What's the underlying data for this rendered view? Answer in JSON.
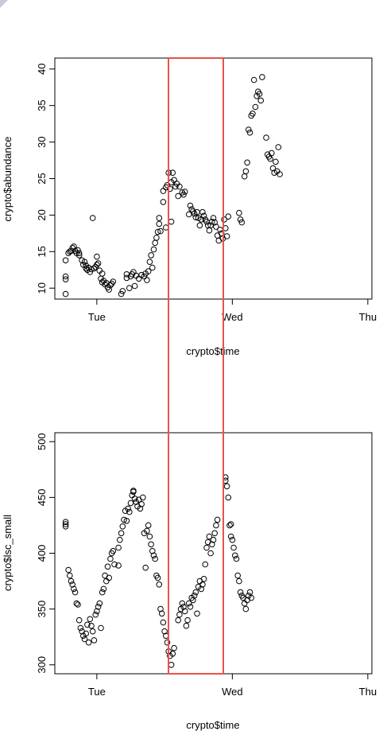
{
  "highlight_color": "#e8534a",
  "chart_data": [
    {
      "type": "scatter",
      "title": "",
      "xlabel": "crypto$time",
      "ylabel": "crypto$abundance",
      "x_tick_labels": [
        "Tue",
        "Wed",
        "Thu"
      ],
      "x_tick_values": [
        1,
        2,
        3
      ],
      "y_ticks": [
        10,
        15,
        20,
        25,
        30,
        35,
        40
      ],
      "xlim": [
        0.69,
        3.03
      ],
      "ylim": [
        8.5,
        41.5
      ],
      "grid": false,
      "points": [
        [
          0.77,
          9.2
        ],
        [
          0.77,
          11.2
        ],
        [
          0.77,
          11.6
        ],
        [
          0.77,
          13.8
        ],
        [
          0.79,
          14.8
        ],
        [
          0.8,
          15.0
        ],
        [
          0.81,
          15.1
        ],
        [
          0.82,
          15.5
        ],
        [
          0.83,
          15.7
        ],
        [
          0.84,
          15.1
        ],
        [
          0.85,
          14.8
        ],
        [
          0.86,
          15.2
        ],
        [
          0.87,
          14.5
        ],
        [
          0.87,
          14.8
        ],
        [
          0.89,
          13.8
        ],
        [
          0.9,
          13.2
        ],
        [
          0.91,
          13.6
        ],
        [
          0.92,
          12.7
        ],
        [
          0.92,
          13.1
        ],
        [
          0.93,
          12.5
        ],
        [
          0.94,
          12.8
        ],
        [
          0.95,
          12.2
        ],
        [
          0.96,
          12.6
        ],
        [
          0.97,
          19.6
        ],
        [
          0.98,
          12.7
        ],
        [
          0.99,
          12.9
        ],
        [
          1.0,
          13.2
        ],
        [
          1.0,
          14.3
        ],
        [
          1.01,
          13.4
        ],
        [
          1.02,
          12.4
        ],
        [
          1.03,
          11.3
        ],
        [
          1.04,
          10.8
        ],
        [
          1.04,
          12.0
        ],
        [
          1.05,
          11.0
        ],
        [
          1.06,
          10.5
        ],
        [
          1.07,
          10.7
        ],
        [
          1.08,
          10.1
        ],
        [
          1.09,
          9.8
        ],
        [
          1.1,
          10.4
        ],
        [
          1.11,
          10.6
        ],
        [
          1.12,
          10.9
        ],
        [
          1.18,
          9.2
        ],
        [
          1.19,
          9.6
        ],
        [
          1.22,
          11.4
        ],
        [
          1.22,
          11.9
        ],
        [
          1.24,
          10.0
        ],
        [
          1.25,
          11.6
        ],
        [
          1.26,
          11.9
        ],
        [
          1.27,
          12.2
        ],
        [
          1.28,
          10.3
        ],
        [
          1.29,
          11.7
        ],
        [
          1.31,
          11.3
        ],
        [
          1.33,
          11.8
        ],
        [
          1.35,
          11.6
        ],
        [
          1.36,
          12.0
        ],
        [
          1.37,
          11.1
        ],
        [
          1.38,
          12.3
        ],
        [
          1.39,
          13.6
        ],
        [
          1.4,
          14.5
        ],
        [
          1.41,
          12.8
        ],
        [
          1.42,
          15.3
        ],
        [
          1.43,
          16.2
        ],
        [
          1.44,
          16.9
        ],
        [
          1.45,
          17.7
        ],
        [
          1.46,
          18.8
        ],
        [
          1.46,
          19.6
        ],
        [
          1.47,
          17.8
        ],
        [
          1.49,
          21.8
        ],
        [
          1.49,
          23.3
        ],
        [
          1.51,
          23.8
        ],
        [
          1.51,
          18.3
        ],
        [
          1.52,
          24.1
        ],
        [
          1.53,
          25.8
        ],
        [
          1.54,
          23.6
        ],
        [
          1.55,
          24.5
        ],
        [
          1.56,
          25.8
        ],
        [
          1.57,
          24.8
        ],
        [
          1.58,
          23.9
        ],
        [
          1.59,
          24.3
        ],
        [
          1.6,
          22.6
        ],
        [
          1.61,
          23.9
        ],
        [
          1.63,
          23.1
        ],
        [
          1.64,
          22.8
        ],
        [
          1.65,
          23.2
        ],
        [
          1.55,
          19.1
        ],
        [
          1.68,
          20.1
        ],
        [
          1.69,
          21.3
        ],
        [
          1.7,
          20.8
        ],
        [
          1.71,
          20.5
        ],
        [
          1.72,
          20.2
        ],
        [
          1.73,
          19.7
        ],
        [
          1.74,
          20.4
        ],
        [
          1.75,
          19.6
        ],
        [
          1.76,
          18.6
        ],
        [
          1.77,
          19.4
        ],
        [
          1.78,
          20.4
        ],
        [
          1.79,
          19.9
        ],
        [
          1.8,
          19.4
        ],
        [
          1.81,
          19.1
        ],
        [
          1.82,
          18.6
        ],
        [
          1.83,
          17.9
        ],
        [
          1.84,
          18.6
        ],
        [
          1.85,
          19.1
        ],
        [
          1.86,
          19.6
        ],
        [
          1.87,
          19.0
        ],
        [
          1.88,
          18.4
        ],
        [
          1.89,
          17.2
        ],
        [
          1.9,
          16.5
        ],
        [
          1.91,
          18.0
        ],
        [
          1.92,
          17.5
        ],
        [
          1.93,
          16.8
        ],
        [
          1.94,
          19.4
        ],
        [
          1.95,
          18.2
        ],
        [
          1.96,
          17.1
        ],
        [
          1.97,
          19.8
        ],
        [
          2.05,
          20.3
        ],
        [
          2.06,
          19.4
        ],
        [
          2.07,
          19.0
        ],
        [
          2.09,
          25.3
        ],
        [
          2.1,
          26.0
        ],
        [
          2.11,
          27.2
        ],
        [
          2.12,
          31.7
        ],
        [
          2.13,
          31.3
        ],
        [
          2.14,
          33.6
        ],
        [
          2.15,
          33.9
        ],
        [
          2.16,
          38.5
        ],
        [
          2.17,
          34.8
        ],
        [
          2.18,
          36.3
        ],
        [
          2.19,
          36.9
        ],
        [
          2.2,
          36.6
        ],
        [
          2.21,
          35.7
        ],
        [
          2.22,
          38.9
        ],
        [
          2.25,
          30.6
        ],
        [
          2.26,
          28.3
        ],
        [
          2.27,
          28.0
        ],
        [
          2.28,
          27.7
        ],
        [
          2.29,
          28.5
        ],
        [
          2.3,
          26.4
        ],
        [
          2.31,
          25.8
        ],
        [
          2.32,
          27.3
        ],
        [
          2.33,
          26.0
        ],
        [
          2.34,
          29.3
        ],
        [
          2.35,
          25.6
        ]
      ]
    },
    {
      "type": "scatter",
      "title": "",
      "xlabel": "crypto$time",
      "ylabel": "crypto$lsc_small",
      "x_tick_labels": [
        "Tue",
        "Wed",
        "Thu"
      ],
      "x_tick_values": [
        1,
        2,
        3
      ],
      "y_ticks": [
        300,
        350,
        400,
        450,
        500
      ],
      "xlim": [
        0.69,
        3.03
      ],
      "ylim": [
        292,
        508
      ],
      "grid": false,
      "points": [
        [
          0.77,
          426
        ],
        [
          0.77,
          424
        ],
        [
          0.77,
          428
        ],
        [
          0.79,
          385
        ],
        [
          0.8,
          380
        ],
        [
          0.81,
          375
        ],
        [
          0.82,
          372
        ],
        [
          0.83,
          368
        ],
        [
          0.84,
          365
        ],
        [
          0.85,
          355
        ],
        [
          0.86,
          354
        ],
        [
          0.87,
          340
        ],
        [
          0.88,
          333
        ],
        [
          0.89,
          330
        ],
        [
          0.9,
          326
        ],
        [
          0.91,
          323
        ],
        [
          0.92,
          328
        ],
        [
          0.93,
          336
        ],
        [
          0.94,
          320
        ],
        [
          0.95,
          341
        ],
        [
          0.96,
          335
        ],
        [
          0.97,
          330
        ],
        [
          0.98,
          322
        ],
        [
          0.99,
          345
        ],
        [
          1.0,
          348
        ],
        [
          1.01,
          352
        ],
        [
          1.02,
          355
        ],
        [
          1.03,
          333
        ],
        [
          1.04,
          365
        ],
        [
          1.05,
          368
        ],
        [
          1.06,
          380
        ],
        [
          1.07,
          375
        ],
        [
          1.08,
          388
        ],
        [
          1.09,
          378
        ],
        [
          1.1,
          395
        ],
        [
          1.11,
          400
        ],
        [
          1.12,
          402
        ],
        [
          1.13,
          390
        ],
        [
          1.16,
          405
        ],
        [
          1.17,
          412
        ],
        [
          1.18,
          418
        ],
        [
          1.19,
          424
        ],
        [
          1.2,
          430
        ],
        [
          1.21,
          438
        ],
        [
          1.22,
          429
        ],
        [
          1.23,
          440
        ],
        [
          1.24,
          437
        ],
        [
          1.25,
          445
        ],
        [
          1.26,
          452
        ],
        [
          1.27,
          455
        ],
        [
          1.28,
          449
        ],
        [
          1.29,
          446
        ],
        [
          1.3,
          442
        ],
        [
          1.31,
          448
        ],
        [
          1.32,
          440
        ],
        [
          1.33,
          444
        ],
        [
          1.34,
          450
        ],
        [
          1.35,
          418
        ],
        [
          1.36,
          387
        ],
        [
          1.37,
          420
        ],
        [
          1.38,
          425
        ],
        [
          1.39,
          415
        ],
        [
          1.4,
          408
        ],
        [
          1.41,
          402
        ],
        [
          1.42,
          398
        ],
        [
          1.43,
          395
        ],
        [
          1.44,
          380
        ],
        [
          1.45,
          378
        ],
        [
          1.46,
          372
        ],
        [
          1.47,
          350
        ],
        [
          1.48,
          346
        ],
        [
          1.49,
          338
        ],
        [
          1.5,
          330
        ],
        [
          1.51,
          326
        ],
        [
          1.52,
          320
        ],
        [
          1.53,
          312
        ],
        [
          1.54,
          308
        ],
        [
          1.55,
          300
        ],
        [
          1.56,
          310
        ],
        [
          1.57,
          315
        ],
        [
          1.16,
          389
        ],
        [
          1.27,
          456
        ],
        [
          1.6,
          340
        ],
        [
          1.61,
          345
        ],
        [
          1.62,
          350
        ],
        [
          1.63,
          355
        ],
        [
          1.64,
          352
        ],
        [
          1.65,
          348
        ],
        [
          1.66,
          335
        ],
        [
          1.67,
          340
        ],
        [
          1.68,
          355
        ],
        [
          1.69,
          352
        ],
        [
          1.7,
          360
        ],
        [
          1.71,
          358
        ],
        [
          1.72,
          362
        ],
        [
          1.73,
          365
        ],
        [
          1.74,
          346
        ],
        [
          1.75,
          370
        ],
        [
          1.76,
          375
        ],
        [
          1.77,
          368
        ],
        [
          1.78,
          372
        ],
        [
          1.79,
          377
        ],
        [
          1.8,
          390
        ],
        [
          1.81,
          405
        ],
        [
          1.82,
          410
        ],
        [
          1.83,
          415
        ],
        [
          1.84,
          400
        ],
        [
          1.85,
          408
        ],
        [
          1.86,
          412
        ],
        [
          1.87,
          418
        ],
        [
          1.88,
          425
        ],
        [
          1.89,
          430
        ],
        [
          1.95,
          465
        ],
        [
          1.96,
          460
        ],
        [
          1.97,
          450
        ],
        [
          1.98,
          425
        ],
        [
          1.99,
          415
        ],
        [
          2.0,
          412
        ],
        [
          2.01,
          405
        ],
        [
          2.02,
          398
        ],
        [
          2.03,
          395
        ],
        [
          2.04,
          380
        ],
        [
          2.05,
          375
        ],
        [
          2.06,
          365
        ],
        [
          2.07,
          362
        ],
        [
          2.08,
          360
        ],
        [
          2.09,
          355
        ],
        [
          2.1,
          350
        ],
        [
          2.11,
          358
        ],
        [
          2.12,
          362
        ],
        [
          2.13,
          365
        ],
        [
          2.14,
          360
        ],
        [
          1.95,
          468
        ],
        [
          1.99,
          426
        ]
      ]
    }
  ]
}
